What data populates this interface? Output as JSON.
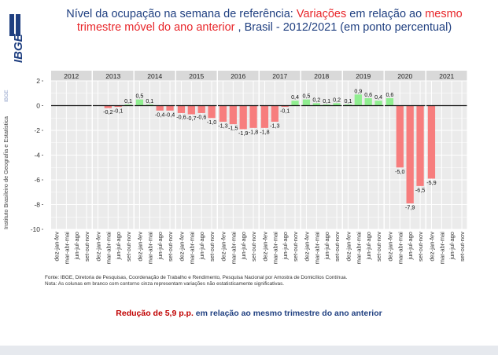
{
  "title": {
    "part1": "Nível da ocupação na semana de referência: ",
    "part2": "Variações",
    "part3": " em relação ao ",
    "part4": "mesmo",
    "part5": "trimestre móvel do ano anterior",
    "part6": " , Brasil - 2012/2021 (em ponto percentual)"
  },
  "logo_text": "IBGE",
  "ylabel": "Instituto Brasileiro de Geografia e Estatística",
  "ylabel_suffix": "IBGE",
  "source": {
    "line1": "Fonte: IBGE, Diretoria de Pesquisas, Coordenação de Trabalho e Rendimento, Pesquisa Nacional por Amostra de Domicílios Contínua.",
    "line2": "Nota: As colunas em branco com contorno cinza representam variações não estatisticamente significativas."
  },
  "summary": {
    "part1": "Redução de 5,9 p.p.",
    "part2": " em relação ao mesmo trimestre do ano anterior"
  },
  "colors": {
    "positive": "#90ee90",
    "negative": "#f77d7d",
    "panel_bg": "#ebebeb",
    "strip_bg": "#d9d9d9",
    "title_blue": "#1f3f80",
    "title_red": "#e8262a"
  },
  "chart_data": {
    "type": "bar",
    "facet_by": "year",
    "ylim": [
      -10,
      2
    ],
    "yticks": [
      "2",
      "0",
      "-2",
      "-4",
      "-6",
      "-8",
      "-10"
    ],
    "categories": [
      "dez-jan-fev",
      "mar-abr-mai",
      "jun-jul-ago",
      "set-out-nov"
    ],
    "grid": true,
    "panels": [
      {
        "year": "2012",
        "values": [
          null,
          null,
          null,
          null
        ],
        "labels": [
          "",
          "",
          "",
          ""
        ]
      },
      {
        "year": "2013",
        "values": [
          0,
          -0.2,
          -0.1,
          0.1
        ],
        "labels": [
          "",
          "-0,2",
          "-0,1",
          "0,1"
        ]
      },
      {
        "year": "2014",
        "values": [
          0.5,
          0.1,
          -0.4,
          -0.4
        ],
        "labels": [
          "0,5",
          "0,1",
          "-0,4",
          "-0,4"
        ]
      },
      {
        "year": "2015",
        "values": [
          -0.6,
          -0.7,
          -0.6,
          -1.0
        ],
        "labels": [
          "-0,6",
          "-0,7",
          "-0,6",
          "-1,0"
        ]
      },
      {
        "year": "2016",
        "values": [
          -1.3,
          -1.5,
          -1.9,
          -1.8
        ],
        "labels": [
          "-1,3",
          "-1,5",
          "-1,9",
          "-1,8"
        ]
      },
      {
        "year": "2017",
        "values": [
          -1.8,
          -1.3,
          -0.1,
          0.4
        ],
        "labels": [
          "-1,8",
          "-1,3",
          "-0,1",
          "0,4"
        ]
      },
      {
        "year": "2018",
        "values": [
          0.5,
          0.2,
          0.1,
          0.2
        ],
        "labels": [
          "0,5",
          "0,2",
          "0,1",
          "0,2"
        ]
      },
      {
        "year": "2019",
        "values": [
          0.1,
          0.9,
          0.6,
          0.4
        ],
        "labels": [
          "0,1",
          "0,9",
          "0,6",
          "0,4"
        ]
      },
      {
        "year": "2020",
        "values": [
          0.6,
          -5.0,
          -7.9,
          -6.5
        ],
        "labels": [
          "0,6",
          "-5,0",
          "-7,9",
          "-6,5"
        ]
      },
      {
        "year": "2021",
        "values": [
          -5.9,
          null,
          null,
          null
        ],
        "labels": [
          "-5,9",
          "",
          "",
          ""
        ]
      }
    ]
  }
}
